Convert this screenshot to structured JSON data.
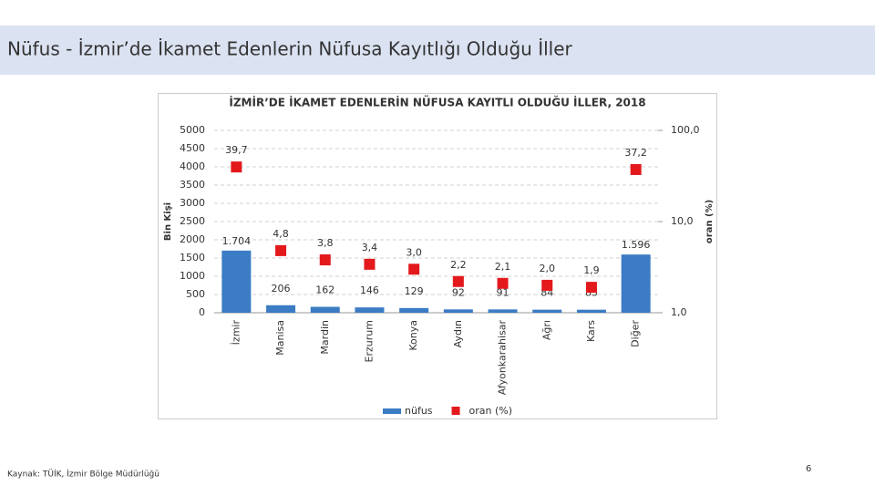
{
  "slide": {
    "title": "Nüfus - İzmir’de İkamet Edenlerin Nüfusa Kayıtlığı Olduğu İller",
    "source": "Kaynak: TÜİK, İzmir Bölge Müdürlüğü",
    "page_number": 6
  },
  "chart_data": {
    "type": "bar",
    "title": "İZMİR’DE İKAMET EDENLERİN NÜFUSA KAYITLI OLDUĞU İLLER, 2018",
    "y_label": "Bin Kişi",
    "y2_label": "oran (%)",
    "categories": [
      "İzmir",
      "Manisa",
      "Mardin",
      "Erzurum",
      "Konya",
      "Aydın",
      "Afyonkarahisar",
      "Ağrı",
      "Kars",
      "Diğer"
    ],
    "series": [
      {
        "name": "nüfus",
        "type": "bar",
        "color": "#3b7cc4",
        "values": [
          1704,
          206,
          162,
          146,
          129,
          92,
          91,
          84,
          83,
          1596
        ],
        "value_labels": [
          "1.704",
          "206",
          "162",
          "146",
          "129",
          "92",
          "91",
          "84",
          "83",
          "1.596"
        ]
      },
      {
        "name": "oran (%)",
        "type": "scatter",
        "axis": "y2",
        "color": "#e3191c",
        "values": [
          39.7,
          4.8,
          3.8,
          3.4,
          3.0,
          2.2,
          2.1,
          2.0,
          1.9,
          37.2
        ],
        "value_labels": [
          "39,7",
          "4,8",
          "3,8",
          "3,4",
          "3,0",
          "2,2",
          "2,1",
          "2,0",
          "1,9",
          "37,2"
        ]
      }
    ],
    "ylim": [
      0,
      5000
    ],
    "yticks": [
      0,
      500,
      1000,
      1500,
      2000,
      2500,
      3000,
      3500,
      4000,
      4500,
      5000
    ],
    "y2lim": [
      1,
      100
    ],
    "y2_scale": "log",
    "y2ticks": [
      {
        "value": 1,
        "label": "1,0"
      },
      {
        "value": 10,
        "label": "10,0"
      },
      {
        "value": 100,
        "label": "100,0"
      }
    ],
    "grid": true,
    "legend": "bottom"
  }
}
